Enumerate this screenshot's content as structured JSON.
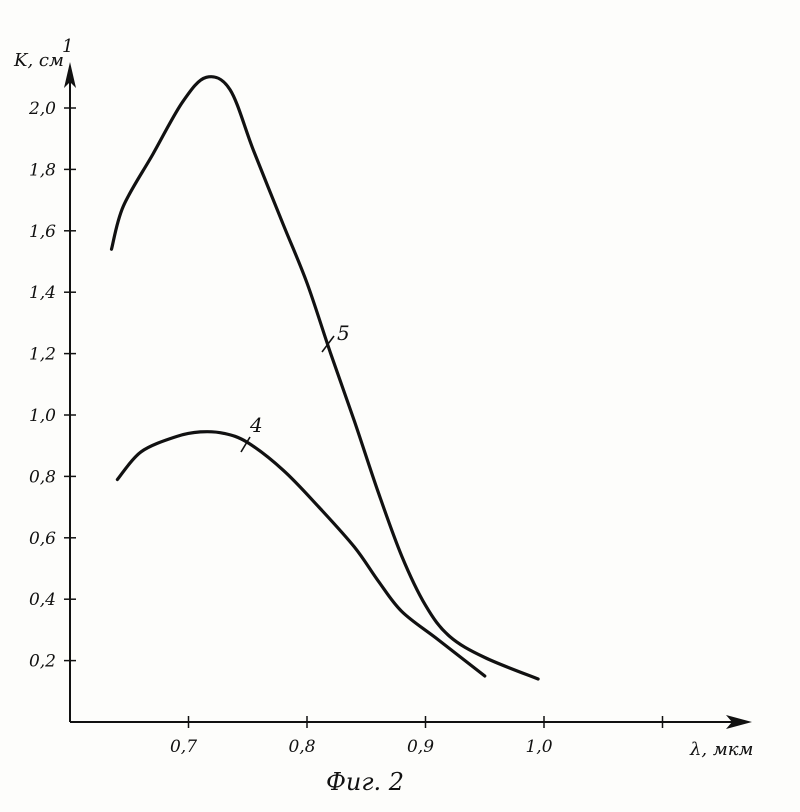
{
  "chart_data": {
    "type": "line",
    "xlabel": "λ, мкм",
    "ylabel": "K, см",
    "ylabel_superscript": "1",
    "caption": "Фиг. 2",
    "xlim": [
      0.6,
      1.2
    ],
    "ylim": [
      0,
      2.2
    ],
    "x_ticks": [
      0.7,
      0.8,
      0.9,
      1.0,
      1.1
    ],
    "x_tick_labels": [
      "0,7",
      "0,8",
      "0,9",
      "1,0",
      ""
    ],
    "y_ticks": [
      0.2,
      0.4,
      0.6,
      0.8,
      1.0,
      1.2,
      1.4,
      1.6,
      1.8,
      2.0
    ],
    "y_tick_labels": [
      "0,2",
      "0,4",
      "0,6",
      "0,8",
      "1,0",
      "1,2",
      "1,4",
      "1,6",
      "1,8",
      "2,0"
    ],
    "grid": false,
    "series": [
      {
        "name": "5",
        "x": [
          0.635,
          0.645,
          0.67,
          0.695,
          0.715,
          0.735,
          0.755,
          0.78,
          0.8,
          0.82,
          0.84,
          0.86,
          0.88,
          0.9,
          0.92,
          0.95,
          0.995
        ],
        "y": [
          1.54,
          1.68,
          1.85,
          2.02,
          2.1,
          2.06,
          1.86,
          1.62,
          1.43,
          1.2,
          0.98,
          0.75,
          0.54,
          0.38,
          0.28,
          0.21,
          0.14
        ]
      },
      {
        "name": "4",
        "x": [
          0.64,
          0.66,
          0.69,
          0.71,
          0.73,
          0.75,
          0.78,
          0.81,
          0.84,
          0.86,
          0.88,
          0.91,
          0.95
        ],
        "y": [
          0.79,
          0.88,
          0.93,
          0.945,
          0.94,
          0.91,
          0.82,
          0.7,
          0.57,
          0.46,
          0.36,
          0.27,
          0.15
        ]
      }
    ]
  }
}
